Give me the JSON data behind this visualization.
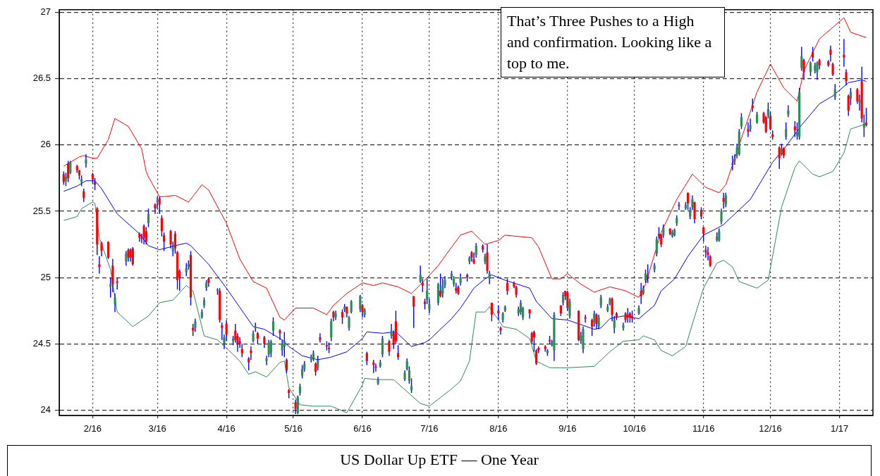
{
  "chart_data": {
    "type": "candlestick",
    "title": "US Dollar Up ETF — One Year",
    "annotations": [
      "That’s Three Pushes to a High and confirmation. Looking like a top to me."
    ],
    "x": [
      "2016-01-19",
      "2016-01-20",
      "2016-01-21",
      "2016-01-22",
      "2016-01-25",
      "2016-01-26",
      "2016-01-27",
      "2016-01-28",
      "2016-01-29",
      "2016-02-01",
      "2016-02-02",
      "2016-02-03",
      "2016-02-04",
      "2016-02-05",
      "2016-02-08",
      "2016-02-09",
      "2016-02-10",
      "2016-02-11",
      "2016-02-12",
      "2016-02-16",
      "2016-02-17",
      "2016-02-18",
      "2016-02-19",
      "2016-02-22",
      "2016-02-23",
      "2016-02-24",
      "2016-02-25",
      "2016-02-26",
      "2016-02-29",
      "2016-03-01",
      "2016-03-02",
      "2016-03-03",
      "2016-03-04",
      "2016-03-07",
      "2016-03-08",
      "2016-03-09",
      "2016-03-10",
      "2016-03-11",
      "2016-03-14",
      "2016-03-15",
      "2016-03-16",
      "2016-03-17",
      "2016-03-18",
      "2016-03-21",
      "2016-03-22",
      "2016-03-23",
      "2016-03-24",
      "2016-03-28",
      "2016-03-29",
      "2016-03-30",
      "2016-03-31",
      "2016-04-01",
      "2016-04-04",
      "2016-04-05",
      "2016-04-06",
      "2016-04-07",
      "2016-04-08",
      "2016-04-11",
      "2016-04-12",
      "2016-04-13",
      "2016-04-14",
      "2016-04-15",
      "2016-04-18",
      "2016-04-19",
      "2016-04-20",
      "2016-04-21",
      "2016-04-22",
      "2016-04-25",
      "2016-04-26",
      "2016-04-27",
      "2016-04-28",
      "2016-04-29",
      "2016-05-02",
      "2016-05-03",
      "2016-05-04",
      "2016-05-05",
      "2016-05-06",
      "2016-05-09",
      "2016-05-10",
      "2016-05-11",
      "2016-05-12",
      "2016-05-13",
      "2016-05-16",
      "2016-05-17",
      "2016-05-18",
      "2016-05-19",
      "2016-05-20",
      "2016-05-23",
      "2016-05-24",
      "2016-05-25",
      "2016-05-26",
      "2016-05-27",
      "2016-05-31",
      "2016-06-01",
      "2016-06-02",
      "2016-06-03",
      "2016-06-06",
      "2016-06-07",
      "2016-06-08",
      "2016-06-09",
      "2016-06-10",
      "2016-06-13",
      "2016-06-14",
      "2016-06-15",
      "2016-06-16",
      "2016-06-17",
      "2016-06-20",
      "2016-06-21",
      "2016-06-22",
      "2016-06-23",
      "2016-06-24",
      "2016-06-27",
      "2016-06-28",
      "2016-06-29",
      "2016-06-30",
      "2016-07-01",
      "2016-07-05",
      "2016-07-06",
      "2016-07-07",
      "2016-07-08",
      "2016-07-11",
      "2016-07-12",
      "2016-07-13",
      "2016-07-14",
      "2016-07-15",
      "2016-07-18",
      "2016-07-19",
      "2016-07-20",
      "2016-07-21",
      "2016-07-22",
      "2016-07-25",
      "2016-07-26",
      "2016-07-27",
      "2016-07-28",
      "2016-07-29",
      "2016-08-01",
      "2016-08-02",
      "2016-08-03",
      "2016-08-04",
      "2016-08-05",
      "2016-08-08",
      "2016-08-09",
      "2016-08-10",
      "2016-08-11",
      "2016-08-12",
      "2016-08-15",
      "2016-08-16",
      "2016-08-17",
      "2016-08-18",
      "2016-08-19",
      "2016-08-22",
      "2016-08-23",
      "2016-08-24",
      "2016-08-25",
      "2016-08-26",
      "2016-08-29",
      "2016-08-30",
      "2016-08-31",
      "2016-09-01",
      "2016-09-02",
      "2016-09-06",
      "2016-09-07",
      "2016-09-08",
      "2016-09-09",
      "2016-09-12",
      "2016-09-13",
      "2016-09-14",
      "2016-09-15",
      "2016-09-16",
      "2016-09-19",
      "2016-09-20",
      "2016-09-21",
      "2016-09-22",
      "2016-09-23",
      "2016-09-26",
      "2016-09-27",
      "2016-09-28",
      "2016-09-29",
      "2016-09-30",
      "2016-10-03",
      "2016-10-04",
      "2016-10-05",
      "2016-10-06",
      "2016-10-07",
      "2016-10-10",
      "2016-10-11",
      "2016-10-12",
      "2016-10-13",
      "2016-10-14",
      "2016-10-17",
      "2016-10-18",
      "2016-10-19",
      "2016-10-20",
      "2016-10-21",
      "2016-10-24",
      "2016-10-25",
      "2016-10-26",
      "2016-10-27",
      "2016-10-28",
      "2016-10-31",
      "2016-11-01",
      "2016-11-02",
      "2016-11-03",
      "2016-11-04",
      "2016-11-07",
      "2016-11-08",
      "2016-11-09",
      "2016-11-10",
      "2016-11-11",
      "2016-11-14",
      "2016-11-15",
      "2016-11-16",
      "2016-11-17",
      "2016-11-18",
      "2016-11-21",
      "2016-11-22",
      "2016-11-23",
      "2016-11-25",
      "2016-11-28",
      "2016-11-29",
      "2016-11-30",
      "2016-12-01",
      "2016-12-02",
      "2016-12-05",
      "2016-12-06",
      "2016-12-07",
      "2016-12-08",
      "2016-12-09",
      "2016-12-12",
      "2016-12-13",
      "2016-12-14",
      "2016-12-15",
      "2016-12-16",
      "2016-12-19",
      "2016-12-20",
      "2016-12-21",
      "2016-12-22",
      "2016-12-23",
      "2016-12-27",
      "2016-12-28",
      "2016-12-29",
      "2016-12-30",
      "2017-01-03",
      "2017-01-04",
      "2017-01-05",
      "2017-01-06",
      "2017-01-09",
      "2017-01-10",
      "2017-01-11",
      "2017-01-12",
      "2017-01-13"
    ],
    "ohlc": [
      [
        25.78,
        25.8,
        25.7,
        25.72
      ],
      [
        25.73,
        25.79,
        25.69,
        25.76
      ],
      [
        25.86,
        25.88,
        25.72,
        25.75
      ],
      [
        25.79,
        25.88,
        25.78,
        25.87
      ],
      [
        25.84,
        25.85,
        25.79,
        25.81
      ],
      [
        25.81,
        25.81,
        25.74,
        25.77
      ],
      [
        25.72,
        25.77,
        25.69,
        25.74
      ],
      [
        25.65,
        25.67,
        25.57,
        25.6
      ],
      [
        25.86,
        25.93,
        25.83,
        25.89
      ],
      [
        25.78,
        25.79,
        25.71,
        25.74
      ],
      [
        25.72,
        25.75,
        25.66,
        25.7
      ],
      [
        25.52,
        25.53,
        25.17,
        25.25
      ],
      [
        25.1,
        25.16,
        25.03,
        25.08
      ],
      [
        25.26,
        25.27,
        25.16,
        25.2
      ],
      [
        25.27,
        25.27,
        25.14,
        25.15
      ],
      [
        24.93,
        25.0,
        24.85,
        24.95
      ],
      [
        25.09,
        25.14,
        24.89,
        24.95
      ],
      [
        24.8,
        24.88,
        24.74,
        24.85
      ],
      [
        24.97,
        25.0,
        24.91,
        24.96
      ],
      [
        25.12,
        25.2,
        25.09,
        25.18
      ],
      [
        25.21,
        25.22,
        25.12,
        25.15
      ],
      [
        25.21,
        25.22,
        25.12,
        25.15
      ],
      [
        25.22,
        25.23,
        25.09,
        25.1
      ],
      [
        25.33,
        25.34,
        25.27,
        25.3
      ],
      [
        25.3,
        25.33,
        25.26,
        25.29
      ],
      [
        25.39,
        25.4,
        25.25,
        25.3
      ],
      [
        25.35,
        25.38,
        25.25,
        25.27
      ],
      [
        25.41,
        25.52,
        25.38,
        25.48
      ],
      [
        25.55,
        25.56,
        25.48,
        25.52
      ],
      [
        25.57,
        25.61,
        25.52,
        25.58
      ],
      [
        25.6,
        25.61,
        25.48,
        25.55
      ],
      [
        25.45,
        25.47,
        25.31,
        25.35
      ],
      [
        25.32,
        25.34,
        25.2,
        25.27
      ],
      [
        25.35,
        25.36,
        25.22,
        25.25
      ],
      [
        25.2,
        25.27,
        25.16,
        25.22
      ],
      [
        25.33,
        25.35,
        25.18,
        25.22
      ],
      [
        25.19,
        25.2,
        24.91,
        24.98
      ],
      [
        25.05,
        25.06,
        24.9,
        25.0
      ],
      [
        25.04,
        25.11,
        25.01,
        25.07
      ],
      [
        25.08,
        25.13,
        25.06,
        25.1
      ],
      [
        25.17,
        25.2,
        24.79,
        24.85
      ],
      [
        24.62,
        24.65,
        24.56,
        24.6
      ],
      [
        24.62,
        24.69,
        24.59,
        24.67
      ],
      [
        24.7,
        24.76,
        24.69,
        24.74
      ],
      [
        24.79,
        24.85,
        24.77,
        24.83
      ],
      [
        24.92,
        24.98,
        24.9,
        24.96
      ],
      [
        24.99,
        25.0,
        24.93,
        24.96
      ],
      [
        24.9,
        24.92,
        24.87,
        24.91
      ],
      [
        24.9,
        24.92,
        24.66,
        24.68
      ],
      [
        24.64,
        24.66,
        24.53,
        24.62
      ],
      [
        24.5,
        24.57,
        24.46,
        24.55
      ],
      [
        24.65,
        24.68,
        24.52,
        24.57
      ],
      [
        24.52,
        24.56,
        24.49,
        24.54
      ],
      [
        24.6,
        24.65,
        24.51,
        24.53
      ],
      [
        24.56,
        24.58,
        24.44,
        24.5
      ],
      [
        24.52,
        24.55,
        24.47,
        24.5
      ],
      [
        24.46,
        24.5,
        24.4,
        24.43
      ],
      [
        24.39,
        24.4,
        24.3,
        24.36
      ],
      [
        24.45,
        24.48,
        24.38,
        24.43
      ],
      [
        24.52,
        24.6,
        24.51,
        24.58
      ],
      [
        24.62,
        24.66,
        24.59,
        24.63
      ],
      [
        24.58,
        24.59,
        24.5,
        24.54
      ],
      [
        24.55,
        24.56,
        24.47,
        24.5
      ],
      [
        24.37,
        24.41,
        24.34,
        24.39
      ],
      [
        24.42,
        24.53,
        24.4,
        24.51
      ],
      [
        24.43,
        24.53,
        24.4,
        24.52
      ],
      [
        24.6,
        24.7,
        24.56,
        24.67
      ],
      [
        24.6,
        24.61,
        24.53,
        24.58
      ],
      [
        24.45,
        24.53,
        24.41,
        24.5
      ],
      [
        24.48,
        24.59,
        24.4,
        24.52
      ],
      [
        24.38,
        24.39,
        24.28,
        24.3
      ],
      [
        24.15,
        24.16,
        24.09,
        24.13
      ],
      [
        24.06,
        24.08,
        23.97,
        24.01
      ],
      [
        23.98,
        24.11,
        23.97,
        24.1
      ],
      [
        24.13,
        24.2,
        24.11,
        24.18
      ],
      [
        24.26,
        24.34,
        24.24,
        24.31
      ],
      [
        24.31,
        24.37,
        24.29,
        24.35
      ],
      [
        24.38,
        24.42,
        24.36,
        24.4
      ],
      [
        24.39,
        24.45,
        24.37,
        24.43
      ],
      [
        24.35,
        24.36,
        24.26,
        24.29
      ],
      [
        24.32,
        24.41,
        24.3,
        24.38
      ],
      [
        24.55,
        24.58,
        24.51,
        24.53
      ],
      [
        24.49,
        24.52,
        24.45,
        24.48
      ],
      [
        24.47,
        24.51,
        24.43,
        24.46
      ],
      [
        24.55,
        24.69,
        24.52,
        24.67
      ],
      [
        24.74,
        24.75,
        24.67,
        24.7
      ],
      [
        24.7,
        24.75,
        24.68,
        24.73
      ],
      [
        24.74,
        24.76,
        24.65,
        24.7
      ],
      [
        24.76,
        24.8,
        24.74,
        24.78
      ],
      [
        24.78,
        24.78,
        24.7,
        24.73
      ],
      [
        24.62,
        24.71,
        24.6,
        24.7
      ],
      [
        24.74,
        24.83,
        24.73,
        24.82
      ],
      [
        24.76,
        24.87,
        24.74,
        24.86
      ],
      [
        24.79,
        24.8,
        24.7,
        24.74
      ],
      [
        24.72,
        24.77,
        24.7,
        24.76
      ],
      [
        24.43,
        24.44,
        24.34,
        24.37
      ],
      [
        24.36,
        24.38,
        24.28,
        24.34
      ],
      [
        24.33,
        24.35,
        24.29,
        24.32
      ],
      [
        24.2,
        24.25,
        24.19,
        24.23
      ],
      [
        24.33,
        24.38,
        24.32,
        24.36
      ],
      [
        24.42,
        24.56,
        24.4,
        24.54
      ],
      [
        24.52,
        24.53,
        24.41,
        24.44
      ],
      [
        24.56,
        24.65,
        24.54,
        24.6
      ],
      [
        24.58,
        24.6,
        24.46,
        24.5
      ],
      [
        24.67,
        24.75,
        24.5,
        24.52
      ],
      [
        24.43,
        24.49,
        24.38,
        24.4
      ],
      [
        24.23,
        24.3,
        24.22,
        24.28
      ],
      [
        24.31,
        24.39,
        24.3,
        24.37
      ],
      [
        24.22,
        24.33,
        24.2,
        24.3
      ],
      [
        24.15,
        24.24,
        24.13,
        24.18
      ],
      [
        24.86,
        24.86,
        24.62,
        24.78
      ],
      [
        24.97,
        25.09,
        24.96,
        25.02
      ],
      [
        24.96,
        24.99,
        24.89,
        24.94
      ],
      [
        24.82,
        24.84,
        24.76,
        24.8
      ],
      [
        24.83,
        24.99,
        24.8,
        24.9
      ],
      [
        24.76,
        24.84,
        24.73,
        24.8
      ],
      [
        24.81,
        24.96,
        24.79,
        24.95
      ],
      [
        24.9,
        25.03,
        24.85,
        24.86
      ],
      [
        24.88,
        24.99,
        24.85,
        24.94
      ],
      [
        24.94,
        25.01,
        24.92,
        24.98
      ],
      [
        25.0,
        25.05,
        24.98,
        25.03
      ],
      [
        24.95,
        25.01,
        24.93,
        24.99
      ],
      [
        24.92,
        24.96,
        24.88,
        24.9
      ],
      [
        24.93,
        24.94,
        24.87,
        24.88
      ],
      [
        24.96,
        25.03,
        24.94,
        25.0
      ],
      [
        25.02,
        25.03,
        24.97,
        25.0
      ],
      [
        25.12,
        25.16,
        25.1,
        25.15
      ],
      [
        25.19,
        25.2,
        25.12,
        25.15
      ],
      [
        25.14,
        25.19,
        25.1,
        25.11
      ],
      [
        25.17,
        25.26,
        25.15,
        25.24
      ],
      [
        25.24,
        25.25,
        25.19,
        25.21
      ],
      [
        25.12,
        25.18,
        25.1,
        25.16
      ],
      [
        25.19,
        25.25,
        25.03,
        25.05
      ],
      [
        24.99,
        25.05,
        24.95,
        25.03
      ],
      [
        24.81,
        24.81,
        24.67,
        24.72
      ],
      [
        24.75,
        24.79,
        24.68,
        24.73
      ],
      [
        24.62,
        24.63,
        24.57,
        24.6
      ],
      [
        24.68,
        24.74,
        24.66,
        24.73
      ],
      [
        24.75,
        24.79,
        24.74,
        24.78
      ],
      [
        24.96,
        24.99,
        24.87,
        24.9
      ],
      [
        24.96,
        24.97,
        24.92,
        24.93
      ],
      [
        24.93,
        24.94,
        24.85,
        24.87
      ],
      [
        24.73,
        24.78,
        24.71,
        24.76
      ],
      [
        24.74,
        24.83,
        24.72,
        24.81
      ],
      [
        24.7,
        24.78,
        24.68,
        24.77
      ],
      [
        24.76,
        24.76,
        24.69,
        24.73
      ],
      [
        24.58,
        24.59,
        24.5,
        24.52
      ],
      [
        24.59,
        24.6,
        24.44,
        24.55
      ],
      [
        24.45,
        24.46,
        24.34,
        24.35
      ],
      [
        24.47,
        24.48,
        24.43,
        24.45
      ],
      [
        24.48,
        24.49,
        24.44,
        24.46
      ],
      [
        24.43,
        24.46,
        24.41,
        24.45
      ],
      [
        24.53,
        24.56,
        24.5,
        24.52
      ],
      [
        24.49,
        24.53,
        24.48,
        24.52
      ],
      [
        24.45,
        24.74,
        24.37,
        24.72
      ],
      [
        24.79,
        24.79,
        24.71,
        24.73
      ],
      [
        24.81,
        24.89,
        24.79,
        24.87
      ],
      [
        24.9,
        24.9,
        24.83,
        24.86
      ],
      [
        24.89,
        24.9,
        24.75,
        24.77
      ],
      [
        24.71,
        24.84,
        24.69,
        24.82
      ],
      [
        24.75,
        24.75,
        24.52,
        24.53
      ],
      [
        24.52,
        24.59,
        24.5,
        24.56
      ],
      [
        24.46,
        24.63,
        24.43,
        24.61
      ],
      [
        24.7,
        24.72,
        24.66,
        24.69
      ],
      [
        24.68,
        24.69,
        24.56,
        24.63
      ],
      [
        24.66,
        24.75,
        24.63,
        24.73
      ],
      [
        24.72,
        24.73,
        24.61,
        24.65
      ],
      [
        24.63,
        24.72,
        24.61,
        24.7
      ],
      [
        24.79,
        24.87,
        24.77,
        24.85
      ],
      [
        24.75,
        24.8,
        24.74,
        24.78
      ],
      [
        24.8,
        24.85,
        24.79,
        24.84
      ],
      [
        24.84,
        24.85,
        24.67,
        24.72
      ],
      [
        24.62,
        24.71,
        24.58,
        24.68
      ],
      [
        24.73,
        24.74,
        24.68,
        24.7
      ],
      [
        24.62,
        24.66,
        24.6,
        24.64
      ],
      [
        24.73,
        24.74,
        24.66,
        24.68
      ],
      [
        24.72,
        24.77,
        24.66,
        24.7
      ],
      [
        24.73,
        24.74,
        24.66,
        24.7
      ],
      [
        24.71,
        24.75,
        24.66,
        24.69
      ],
      [
        24.73,
        24.79,
        24.72,
        24.77
      ],
      [
        24.9,
        24.96,
        24.8,
        24.86
      ],
      [
        24.88,
        24.94,
        24.87,
        24.92
      ],
      [
        24.98,
        25.06,
        24.96,
        25.03
      ],
      [
        25.02,
        25.1,
        24.96,
        25.0
      ],
      [
        25.06,
        25.11,
        25.04,
        25.09
      ],
      [
        25.18,
        25.31,
        25.16,
        25.29
      ],
      [
        25.33,
        25.38,
        25.29,
        25.31
      ],
      [
        25.32,
        25.33,
        25.23,
        25.25
      ],
      [
        25.32,
        25.4,
        25.3,
        25.38
      ],
      [
        25.37,
        25.37,
        25.32,
        25.33
      ],
      [
        25.31,
        25.36,
        25.3,
        25.34
      ],
      [
        25.32,
        25.37,
        25.31,
        25.36
      ],
      [
        25.41,
        25.47,
        25.39,
        25.45
      ],
      [
        25.55,
        25.57,
        25.51,
        25.54
      ],
      [
        25.52,
        25.57,
        25.51,
        25.55
      ],
      [
        25.64,
        25.64,
        25.51,
        25.56
      ],
      [
        25.46,
        25.53,
        25.44,
        25.51
      ],
      [
        25.53,
        25.62,
        25.51,
        25.59
      ],
      [
        25.57,
        25.57,
        25.41,
        25.44
      ],
      [
        25.51,
        25.53,
        25.44,
        25.46
      ],
      [
        25.38,
        25.38,
        25.27,
        25.33
      ],
      [
        25.21,
        25.24,
        25.15,
        25.19
      ],
      [
        25.19,
        25.23,
        25.13,
        25.17
      ],
      [
        25.16,
        25.17,
        25.08,
        25.09
      ],
      [
        25.28,
        25.34,
        25.27,
        25.31
      ],
      [
        25.28,
        25.37,
        25.27,
        25.35
      ],
      [
        25.42,
        25.52,
        25.4,
        25.5
      ],
      [
        25.6,
        25.64,
        25.52,
        25.57
      ],
      [
        25.55,
        25.64,
        25.53,
        25.62
      ],
      [
        25.86,
        25.92,
        25.81,
        25.85
      ],
      [
        25.88,
        25.93,
        25.85,
        25.9
      ],
      [
        25.93,
        26.01,
        25.9,
        25.98
      ],
      [
        25.93,
        26.12,
        25.92,
        26.1
      ],
      [
        26.14,
        26.24,
        26.12,
        26.21
      ],
      [
        26.12,
        26.17,
        26.06,
        26.1
      ],
      [
        26.12,
        26.2,
        26.1,
        26.15
      ],
      [
        26.3,
        26.35,
        26.25,
        26.28
      ],
      [
        26.17,
        26.25,
        26.16,
        26.23
      ],
      [
        26.24,
        26.25,
        26.16,
        26.17
      ],
      [
        26.21,
        26.22,
        26.09,
        26.1
      ],
      [
        26.22,
        26.32,
        26.2,
        26.27
      ],
      [
        26.22,
        26.25,
        26.11,
        26.12
      ],
      [
        26.08,
        26.11,
        26.04,
        26.06
      ],
      [
        25.98,
        25.99,
        25.82,
        25.9
      ],
      [
        25.93,
        26.01,
        25.92,
        25.97
      ],
      [
        25.98,
        25.98,
        25.9,
        25.92
      ],
      [
        26.06,
        26.17,
        26.04,
        26.12
      ],
      [
        26.23,
        26.3,
        26.21,
        26.26
      ],
      [
        26.14,
        26.18,
        26.06,
        26.11
      ],
      [
        26.07,
        26.17,
        26.04,
        26.1
      ],
      [
        26.06,
        26.43,
        26.04,
        26.4
      ],
      [
        26.58,
        26.74,
        26.56,
        26.67
      ],
      [
        26.64,
        26.65,
        26.49,
        26.55
      ],
      [
        26.55,
        26.63,
        26.52,
        26.62
      ],
      [
        26.7,
        26.74,
        26.63,
        26.66
      ],
      [
        26.56,
        26.62,
        26.54,
        26.6
      ],
      [
        26.55,
        26.63,
        26.49,
        26.62
      ],
      [
        26.64,
        26.65,
        26.57,
        26.6
      ],
      [
        26.63,
        26.64,
        26.59,
        26.6
      ],
      [
        26.72,
        26.75,
        26.63,
        26.68
      ],
      [
        26.61,
        26.62,
        26.52,
        26.53
      ],
      [
        26.36,
        26.46,
        26.34,
        26.42
      ],
      [
        26.68,
        26.8,
        26.59,
        26.66
      ],
      [
        26.55,
        26.57,
        26.45,
        26.48
      ],
      [
        26.37,
        26.38,
        26.22,
        26.26
      ],
      [
        26.35,
        26.43,
        26.3,
        26.4
      ],
      [
        26.42,
        26.43,
        26.31,
        26.33
      ],
      [
        26.32,
        26.38,
        26.26,
        26.34
      ],
      [
        26.48,
        26.59,
        26.17,
        26.2
      ],
      [
        26.13,
        26.23,
        26.06,
        26.16
      ],
      [
        26.17,
        26.28,
        26.14,
        26.15
      ]
    ],
    "color": "#0000ff",
    "colors": [
      "#ff0000",
      "#2e8b57",
      "#ff0000",
      "#2e8b57",
      "#ff0000",
      "#ff0000",
      "#2e8b57",
      "#ff0000",
      "#2e8b57",
      "#ff0000",
      "#ff0000",
      "#ff0000",
      "#ff0000",
      "#ff0000",
      "#ff0000",
      "#2e8b57",
      "#ff0000",
      "#2e8b57",
      "#ff0000",
      "#2e8b57",
      "#ff0000",
      "#ff0000",
      "#ff0000",
      "#ff0000",
      "#ff0000",
      "#ff0000",
      "#ff0000",
      "#2e8b57",
      "#ff0000",
      "#2e8b57",
      "#ff0000",
      "#ff0000",
      "#ff0000",
      "#ff0000",
      "#2e8b57",
      "#ff0000",
      "#ff0000",
      "#ff0000",
      "#2e8b57",
      "#2e8b57",
      "#ff0000",
      "#ff0000",
      "#2e8b57",
      "#2e8b57",
      "#2e8b57",
      "#2e8b57",
      "#ff0000",
      "#2e8b57",
      "#ff0000",
      "#ff0000",
      "#2e8b57",
      "#ff0000",
      "#2e8b57",
      "#ff0000",
      "#ff0000",
      "#ff0000",
      "#ff0000",
      "#ff0000",
      "#ff0000",
      "#2e8b57",
      "#2e8b57",
      "#ff0000",
      "#ff0000",
      "#2e8b57",
      "#2e8b57",
      "#2e8b57",
      "#2e8b57",
      "#ff0000",
      "#2e8b57",
      "#2e8b57",
      "#ff0000",
      "#ff0000",
      "#ff0000",
      "#2e8b57",
      "#2e8b57",
      "#2e8b57",
      "#2e8b57",
      "#2e8b57",
      "#2e8b57",
      "#ff0000",
      "#2e8b57",
      "#ff0000",
      "#ff0000",
      "#ff0000",
      "#2e8b57",
      "#ff0000",
      "#2e8b57",
      "#ff0000",
      "#2e8b57",
      "#ff0000",
      "#2e8b57",
      "#2e8b57",
      "#2e8b57",
      "#ff0000",
      "#2e8b57",
      "#ff0000",
      "#ff0000",
      "#ff0000",
      "#2e8b57",
      "#2e8b57",
      "#2e8b57",
      "#ff0000",
      "#2e8b57",
      "#ff0000",
      "#ff0000",
      "#ff0000",
      "#2e8b57",
      "#2e8b57",
      "#2e8b57",
      "#2e8b57",
      "#ff0000",
      "#2e8b57",
      "#ff0000",
      "#ff0000",
      "#2e8b57",
      "#2e8b57",
      "#2e8b57",
      "#ff0000",
      "#2e8b57",
      "#2e8b57",
      "#2e8b57",
      "#2e8b57",
      "#ff0000",
      "#ff0000",
      "#2e8b57",
      "#ff0000",
      "#2e8b57",
      "#ff0000",
      "#ff0000",
      "#2e8b57",
      "#ff0000",
      "#2e8b57",
      "#ff0000",
      "#2e8b57",
      "#ff0000",
      "#ff0000",
      "#ff0000",
      "#2e8b57",
      "#2e8b57",
      "#ff0000",
      "#ff0000",
      "#ff0000",
      "#2e8b57",
      "#2e8b57",
      "#2e8b57",
      "#ff0000",
      "#ff0000",
      "#ff0000",
      "#ff0000",
      "#ff0000",
      "#ff0000",
      "#2e8b57",
      "#ff0000",
      "#2e8b57",
      "#2e8b57",
      "#ff0000",
      "#2e8b57",
      "#ff0000",
      "#ff0000",
      "#2e8b57",
      "#ff0000",
      "#2e8b57",
      "#2e8b57",
      "#ff0000",
      "#ff0000",
      "#2e8b57",
      "#ff0000",
      "#2e8b57",
      "#2e8b57",
      "#2e8b57",
      "#2e8b57",
      "#ff0000",
      "#2e8b57",
      "#ff0000",
      "#2e8b57",
      "#ff0000",
      "#ff0000",
      "#ff0000",
      "#ff0000",
      "#2e8b57",
      "#ff0000",
      "#2e8b57",
      "#2e8b57",
      "#ff0000",
      "#2e8b57",
      "#2e8b57",
      "#ff0000",
      "#ff0000",
      "#2e8b57",
      "#ff0000",
      "#2e8b57",
      "#2e8b57",
      "#2e8b57",
      "#ff0000",
      "#2e8b57",
      "#ff0000",
      "#2e8b57",
      "#2e8b57",
      "#ff0000",
      "#ff0000",
      "#ff0000",
      "#ff0000",
      "#ff0000",
      "#ff0000",
      "#2e8b57",
      "#2e8b57",
      "#2e8b57",
      "#ff0000",
      "#2e8b57",
      "#ff0000",
      "#2e8b57",
      "#2e8b57",
      "#2e8b57",
      "#2e8b57",
      "#ff0000",
      "#2e8b57",
      "#ff0000",
      "#2e8b57",
      "#ff0000",
      "#ff0000",
      "#2e8b57",
      "#ff0000",
      "#ff0000",
      "#ff0000",
      "#2e8b57",
      "#ff0000",
      "#2e8b57",
      "#2e8b57",
      "#ff0000",
      "#2e8b57",
      "#2e8b57",
      "#2e8b57",
      "#ff0000",
      "#2e8b57",
      "#ff0000",
      "#2e8b57",
      "#2e8b57",
      "#ff0000",
      "#ff0000",
      "#ff0000",
      "#ff0000",
      "#2e8b57",
      "#ff0000",
      "#ff0000",
      "#ff0000",
      "#2e8b57",
      "#ff0000",
      "#2e8b57",
      "#ff0000",
      "#2e8b57",
      "#ff0000"
    ],
    "series": [
      {
        "type": "line",
        "color": "#ff0000",
        "x": [
          "2016-01-19",
          "2016-01-26",
          "2016-01-28",
          "2016-02-01",
          "2016-02-03",
          "2016-02-08",
          "2016-02-11",
          "2016-02-17",
          "2016-02-23",
          "2016-02-25",
          "2016-02-26",
          "2016-03-02",
          "2016-03-04",
          "2016-03-09",
          "2016-03-15",
          "2016-03-21",
          "2016-03-24",
          "2016-04-01",
          "2016-04-07",
          "2016-04-13",
          "2016-04-19",
          "2016-04-25",
          "2016-04-27",
          "2016-05-02",
          "2016-05-10",
          "2016-05-16",
          "2016-05-19",
          "2016-05-25",
          "2016-06-01",
          "2016-06-06",
          "2016-06-10",
          "2016-06-17",
          "2016-06-23",
          "2016-06-29",
          "2016-07-05",
          "2016-07-11",
          "2016-07-15",
          "2016-07-20",
          "2016-07-26",
          "2016-08-01",
          "2016-08-04",
          "2016-08-16",
          "2016-08-19",
          "2016-08-25",
          "2016-08-29",
          "2016-09-01",
          "2016-09-07",
          "2016-09-13",
          "2016-09-20",
          "2016-09-27",
          "2016-10-03",
          "2016-10-06",
          "2016-10-13",
          "2016-10-20",
          "2016-10-27",
          "2016-11-02",
          "2016-11-08",
          "2016-11-11",
          "2016-11-25",
          "2016-12-01",
          "2016-12-07",
          "2016-12-13",
          "2016-12-16",
          "2016-12-23",
          "2017-01-03",
          "2017-01-06",
          "2017-01-13"
        ],
        "values": [
          25.84,
          25.91,
          25.92,
          25.9,
          25.9,
          26.04,
          26.2,
          26.14,
          25.97,
          25.8,
          25.76,
          25.61,
          25.61,
          25.62,
          25.57,
          25.7,
          25.66,
          25.41,
          25.14,
          24.97,
          24.92,
          24.7,
          24.68,
          24.77,
          24.77,
          24.72,
          24.79,
          24.88,
          24.96,
          24.94,
          24.96,
          24.93,
          24.88,
          24.98,
          25.09,
          25.23,
          25.32,
          25.35,
          25.25,
          25.28,
          25.32,
          25.3,
          25.23,
          24.99,
          24.99,
          25.03,
          24.95,
          24.89,
          24.93,
          24.9,
          24.85,
          24.95,
          25.34,
          25.59,
          25.78,
          25.68,
          25.64,
          25.7,
          26.4,
          26.61,
          26.43,
          26.33,
          26.56,
          26.8,
          26.96,
          26.85,
          26.81
        ]
      },
      {
        "type": "line",
        "color": "#0000ff",
        "x": [
          "2016-01-19",
          "2016-01-25",
          "2016-01-29",
          "2016-02-02",
          "2016-02-05",
          "2016-02-12",
          "2016-02-22",
          "2016-02-26",
          "2016-03-02",
          "2016-03-09",
          "2016-03-14",
          "2016-03-16",
          "2016-03-24",
          "2016-04-01",
          "2016-04-13",
          "2016-04-18",
          "2016-04-26",
          "2016-04-29",
          "2016-05-05",
          "2016-05-12",
          "2016-05-18",
          "2016-05-25",
          "2016-06-01",
          "2016-06-03",
          "2016-06-10",
          "2016-06-16",
          "2016-06-23",
          "2016-06-29",
          "2016-07-01",
          "2016-07-11",
          "2016-07-15",
          "2016-07-21",
          "2016-07-26",
          "2016-07-29",
          "2016-08-04",
          "2016-08-15",
          "2016-08-18",
          "2016-08-25",
          "2016-09-01",
          "2016-09-13",
          "2016-09-16",
          "2016-09-20",
          "2016-09-26",
          "2016-10-03",
          "2016-10-10",
          "2016-10-13",
          "2016-10-19",
          "2016-10-25",
          "2016-11-01",
          "2016-11-08",
          "2016-11-10",
          "2016-11-22",
          "2016-12-02",
          "2016-12-08",
          "2016-12-15",
          "2016-12-23",
          "2016-12-29",
          "2017-01-05",
          "2017-01-11",
          "2017-01-13"
        ],
        "values": [
          25.65,
          25.69,
          25.73,
          25.73,
          25.67,
          25.48,
          25.33,
          25.24,
          25.21,
          25.24,
          25.26,
          25.24,
          25.1,
          24.92,
          24.63,
          24.61,
          24.53,
          24.48,
          24.41,
          24.38,
          24.4,
          24.44,
          24.54,
          24.59,
          24.58,
          24.59,
          24.48,
          24.51,
          24.53,
          24.69,
          24.77,
          24.92,
          24.99,
          25.02,
          24.98,
          24.92,
          24.82,
          24.69,
          24.68,
          24.61,
          24.62,
          24.69,
          24.71,
          24.69,
          24.79,
          24.9,
          24.99,
          25.16,
          25.32,
          25.38,
          25.4,
          25.59,
          25.87,
          25.99,
          26.15,
          26.31,
          26.37,
          26.47,
          26.49,
          26.48
        ]
      },
      {
        "type": "line",
        "color": "#2e8b57",
        "x": [
          "2016-01-19",
          "2016-01-25",
          "2016-01-27",
          "2016-02-01",
          "2016-02-02",
          "2016-02-04",
          "2016-02-09",
          "2016-02-12",
          "2016-02-19",
          "2016-02-26",
          "2016-03-02",
          "2016-03-08",
          "2016-03-14",
          "2016-03-17",
          "2016-03-22",
          "2016-03-28",
          "2016-04-04",
          "2016-04-07",
          "2016-04-11",
          "2016-04-14",
          "2016-04-19",
          "2016-04-25",
          "2016-04-27",
          "2016-04-29",
          "2016-05-04",
          "2016-05-10",
          "2016-05-18",
          "2016-05-25",
          "2016-06-01",
          "2016-06-02",
          "2016-06-08",
          "2016-06-15",
          "2016-06-21",
          "2016-06-27",
          "2016-07-01",
          "2016-07-11",
          "2016-07-15",
          "2016-07-19",
          "2016-07-22",
          "2016-07-26",
          "2016-07-28",
          "2016-08-03",
          "2016-08-09",
          "2016-08-15",
          "2016-08-18",
          "2016-08-24",
          "2016-09-01",
          "2016-09-13",
          "2016-09-20",
          "2016-09-26",
          "2016-10-03",
          "2016-10-05",
          "2016-10-10",
          "2016-10-13",
          "2016-10-18",
          "2016-10-24",
          "2016-10-27",
          "2016-11-01",
          "2016-11-07",
          "2016-11-10",
          "2016-11-14",
          "2016-11-17",
          "2016-11-25",
          "2016-11-30",
          "2016-12-06",
          "2016-12-12",
          "2016-12-14",
          "2016-12-20",
          "2016-12-23",
          "2016-12-29",
          "2017-01-03",
          "2017-01-06",
          "2017-01-13"
        ],
        "values": [
          25.43,
          25.46,
          25.52,
          25.57,
          25.56,
          25.3,
          25.06,
          24.74,
          24.63,
          24.71,
          24.81,
          24.83,
          24.94,
          24.9,
          24.56,
          24.53,
          24.42,
          24.37,
          24.27,
          24.29,
          24.25,
          24.36,
          24.37,
          24.17,
          24.04,
          24.03,
          24.03,
          23.98,
          24.19,
          24.24,
          24.23,
          24.23,
          24.14,
          24.05,
          24.03,
          24.16,
          24.22,
          24.37,
          24.74,
          24.74,
          24.78,
          24.63,
          24.61,
          24.54,
          24.37,
          24.32,
          24.32,
          24.33,
          24.44,
          24.52,
          24.53,
          24.56,
          24.53,
          24.45,
          24.41,
          24.48,
          24.65,
          24.92,
          25.11,
          25.13,
          25.08,
          24.97,
          24.92,
          24.98,
          25.53,
          25.83,
          25.88,
          25.78,
          25.76,
          25.8,
          25.94,
          26.12,
          26.16
        ]
      }
    ],
    "xlim": [
      "2016-01-17",
      "2017-01-16"
    ],
    "xticks": [
      {
        "value": "2016-02-01",
        "label": "2/16"
      },
      {
        "value": "2016-03-01",
        "label": "3/16"
      },
      {
        "value": "2016-04-01",
        "label": "4/16"
      },
      {
        "value": "2016-05-01",
        "label": "5/16"
      },
      {
        "value": "2016-06-01",
        "label": "6/16"
      },
      {
        "value": "2016-07-01",
        "label": "7/16"
      },
      {
        "value": "2016-08-01",
        "label": "8/16"
      },
      {
        "value": "2016-09-01",
        "label": "9/16"
      },
      {
        "value": "2016-10-01",
        "label": "10/16"
      },
      {
        "value": "2016-11-01",
        "label": "11/16"
      },
      {
        "value": "2016-12-01",
        "label": "12/16"
      },
      {
        "value": "2017-01-01",
        "label": "1/17"
      }
    ],
    "ylim": [
      23.96,
      27.02
    ],
    "yticks": [
      24,
      24.5,
      25,
      25.5,
      26,
      26.5,
      27
    ],
    "grid": true,
    "legend": false
  }
}
